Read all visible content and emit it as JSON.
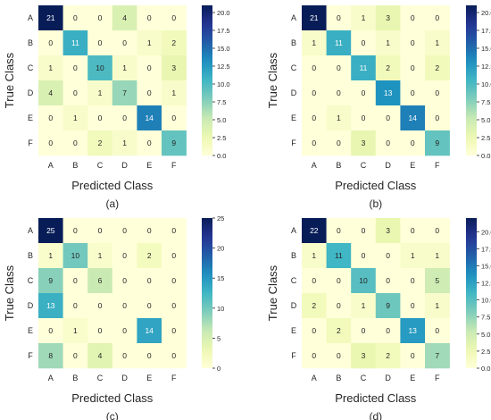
{
  "chart_data": [
    {
      "type": "heatmap",
      "xlabel": "Predicted Class",
      "ylabel": "True Class",
      "caption": "(a)",
      "x_categories": [
        "A",
        "B",
        "C",
        "D",
        "E",
        "F"
      ],
      "y_categories": [
        "A",
        "B",
        "C",
        "D",
        "E",
        "F"
      ],
      "values": [
        [
          21,
          0,
          0,
          4,
          0,
          0
        ],
        [
          0,
          11,
          0,
          0,
          1,
          2
        ],
        [
          1,
          0,
          10,
          1,
          0,
          3
        ],
        [
          4,
          0,
          1,
          7,
          0,
          1
        ],
        [
          0,
          1,
          0,
          0,
          14,
          0
        ],
        [
          0,
          0,
          2,
          1,
          0,
          9
        ]
      ],
      "colorbar": {
        "range": [
          0,
          21
        ],
        "ticks": [
          "0.0",
          "2.5",
          "5.0",
          "7.5",
          "10.0",
          "12.5",
          "15.0",
          "17.5",
          "20.0"
        ],
        "tick_values": [
          0,
          2.5,
          5,
          7.5,
          10,
          12.5,
          15,
          17.5,
          20
        ]
      },
      "colormap": "YlGnBu"
    },
    {
      "type": "heatmap",
      "xlabel": "Predicted Class",
      "ylabel": "True Class",
      "caption": "(b)",
      "x_categories": [
        "A",
        "B",
        "C",
        "D",
        "E",
        "F"
      ],
      "y_categories": [
        "A",
        "B",
        "C",
        "D",
        "E",
        "F"
      ],
      "values": [
        [
          21,
          0,
          1,
          3,
          0,
          0
        ],
        [
          1,
          11,
          0,
          1,
          0,
          1
        ],
        [
          0,
          0,
          11,
          2,
          0,
          2
        ],
        [
          0,
          0,
          0,
          13,
          0,
          0
        ],
        [
          0,
          1,
          0,
          0,
          14,
          0
        ],
        [
          0,
          0,
          3,
          0,
          0,
          9
        ]
      ],
      "colorbar": {
        "range": [
          0,
          21
        ],
        "ticks": [
          "0.0",
          "2.5",
          "5.0",
          "7.5",
          "10.0",
          "12.5",
          "15.0",
          "17.5",
          "20.0"
        ],
        "tick_values": [
          0,
          2.5,
          5,
          7.5,
          10,
          12.5,
          15,
          17.5,
          20
        ]
      },
      "colormap": "YlGnBu"
    },
    {
      "type": "heatmap",
      "xlabel": "Predicted Class",
      "ylabel": "True Class",
      "caption": "(c)",
      "x_categories": [
        "A",
        "B",
        "C",
        "D",
        "E",
        "F"
      ],
      "y_categories": [
        "A",
        "B",
        "C",
        "D",
        "E",
        "F"
      ],
      "values": [
        [
          25,
          0,
          0,
          0,
          0,
          0
        ],
        [
          1,
          10,
          1,
          0,
          2,
          0
        ],
        [
          9,
          0,
          6,
          0,
          0,
          0
        ],
        [
          13,
          0,
          0,
          0,
          0,
          0
        ],
        [
          0,
          1,
          0,
          0,
          14,
          0
        ],
        [
          8,
          0,
          4,
          0,
          0,
          0
        ]
      ],
      "colorbar": {
        "range": [
          0,
          25
        ],
        "ticks": [
          "0",
          "5",
          "10",
          "15",
          "20",
          "25"
        ],
        "tick_values": [
          0,
          5,
          10,
          15,
          20,
          25
        ]
      },
      "colormap": "YlGnBu"
    },
    {
      "type": "heatmap",
      "xlabel": "Predicted Class",
      "ylabel": "True Class",
      "caption": "(d)",
      "x_categories": [
        "A",
        "B",
        "C",
        "D",
        "E",
        "F"
      ],
      "y_categories": [
        "A",
        "B",
        "C",
        "D",
        "E",
        "F"
      ],
      "values": [
        [
          22,
          0,
          0,
          3,
          0,
          0
        ],
        [
          1,
          11,
          0,
          0,
          1,
          1
        ],
        [
          0,
          0,
          10,
          0,
          0,
          5
        ],
        [
          2,
          0,
          1,
          9,
          0,
          1
        ],
        [
          0,
          2,
          0,
          0,
          13,
          0
        ],
        [
          0,
          0,
          3,
          2,
          0,
          7
        ]
      ],
      "colorbar": {
        "range": [
          0,
          22
        ],
        "ticks": [
          "0.0",
          "2.5",
          "5.0",
          "7.5",
          "10.0",
          "12.5",
          "15.0",
          "17.5",
          "20.0"
        ],
        "tick_values": [
          0,
          2.5,
          5,
          7.5,
          10,
          12.5,
          15,
          17.5,
          20
        ]
      },
      "colormap": "YlGnBu"
    }
  ]
}
